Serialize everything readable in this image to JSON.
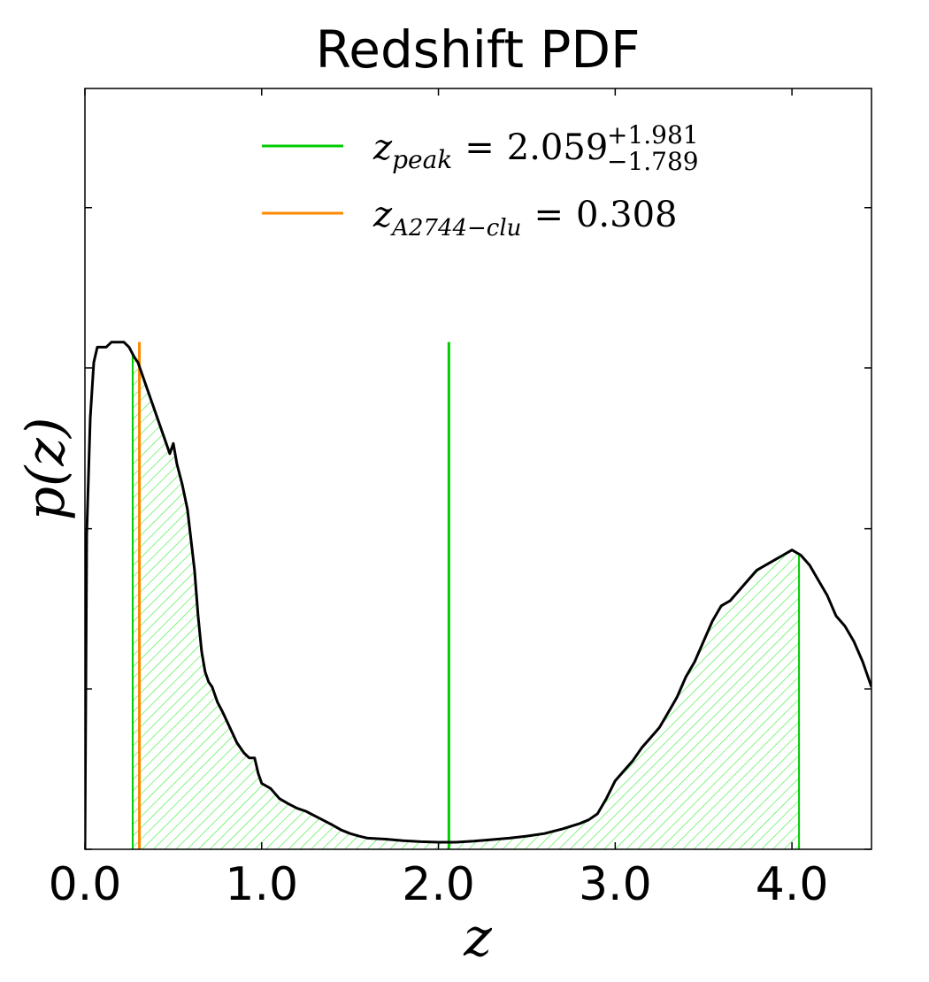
{
  "chart_data": {
    "type": "line",
    "title": "Redshift PDF",
    "xlabel": "z",
    "ylabel": "p(z)",
    "xlim": [
      0.0,
      4.45
    ],
    "ylim": [
      0,
      1.5
    ],
    "x_ticks": [
      0.0,
      1.0,
      2.0,
      3.0,
      4.0
    ],
    "x_tick_labels": [
      "0.0",
      "1.0",
      "2.0",
      "3.0",
      "4.0"
    ],
    "y_tick_values": [
      0.0,
      0.316,
      0.632,
      0.949,
      1.265
    ],
    "y_tick_labels_shown": false,
    "grid": false,
    "legend_position": "top-center",
    "series": [
      {
        "x": [
          0.0,
          0.01,
          0.03,
          0.05,
          0.07,
          0.1,
          0.12,
          0.15,
          0.18,
          0.2,
          0.22,
          0.25,
          0.28,
          0.3,
          0.33,
          0.36,
          0.4,
          0.43,
          0.46,
          0.48,
          0.5,
          0.52,
          0.55,
          0.58,
          0.6,
          0.62,
          0.64,
          0.66,
          0.68,
          0.7,
          0.72,
          0.75,
          0.78,
          0.82,
          0.86,
          0.9,
          0.93,
          0.96,
          0.98,
          1.0,
          1.05,
          1.1,
          1.15,
          1.2,
          1.25,
          1.3,
          1.35,
          1.4,
          1.45,
          1.5,
          1.55,
          1.6,
          1.7,
          1.8,
          1.9,
          2.0,
          2.1,
          2.2,
          2.3,
          2.4,
          2.5,
          2.6,
          2.7,
          2.8,
          2.85,
          2.9,
          2.95,
          3.0,
          3.05,
          3.1,
          3.15,
          3.2,
          3.25,
          3.3,
          3.35,
          3.4,
          3.45,
          3.5,
          3.55,
          3.6,
          3.65,
          3.7,
          3.75,
          3.8,
          3.85,
          3.9,
          3.95,
          4.0,
          4.05,
          4.1,
          4.15,
          4.2,
          4.25,
          4.3,
          4.35,
          4.4,
          4.45
        ],
        "values": [
          0.0,
          0.62,
          0.85,
          0.96,
          0.99,
          0.99,
          0.99,
          1.0,
          1.0,
          1.0,
          1.0,
          0.99,
          0.97,
          0.96,
          0.93,
          0.9,
          0.86,
          0.83,
          0.8,
          0.78,
          0.8,
          0.76,
          0.72,
          0.67,
          0.61,
          0.55,
          0.46,
          0.39,
          0.35,
          0.33,
          0.32,
          0.29,
          0.27,
          0.24,
          0.21,
          0.19,
          0.18,
          0.18,
          0.15,
          0.13,
          0.12,
          0.1,
          0.09,
          0.081,
          0.075,
          0.066,
          0.057,
          0.048,
          0.038,
          0.031,
          0.026,
          0.022,
          0.02,
          0.017,
          0.015,
          0.014,
          0.014,
          0.016,
          0.019,
          0.022,
          0.026,
          0.031,
          0.04,
          0.051,
          0.058,
          0.07,
          0.1,
          0.135,
          0.155,
          0.175,
          0.2,
          0.22,
          0.24,
          0.27,
          0.3,
          0.34,
          0.37,
          0.41,
          0.45,
          0.48,
          0.49,
          0.51,
          0.53,
          0.55,
          0.56,
          0.57,
          0.58,
          0.59,
          0.58,
          0.56,
          0.53,
          0.5,
          0.46,
          0.44,
          0.41,
          0.37,
          0.32
        ],
        "color": "#000000"
      }
    ],
    "shaded_region": {
      "x_range": [
        0.27,
        4.04
      ],
      "hatch_color": "#44ee44",
      "edge_color": "#00cc00"
    },
    "vlines": [
      {
        "name": "z_peak",
        "x": 2.059,
        "color": "#00cc00"
      },
      {
        "name": "z_A2744-clu",
        "x": 0.308,
        "color": "#ff8800"
      }
    ],
    "legend": [
      {
        "label_main": "z",
        "label_sub": "peak",
        "equals": "=",
        "value": "2.059",
        "sup": "+1.981",
        "sub": "−1.789",
        "color": "#00cc00"
      },
      {
        "label_main": "z",
        "label_sub": "A2744−clu",
        "equals": "=",
        "value": "0.308",
        "color": "#ff8800"
      }
    ]
  }
}
